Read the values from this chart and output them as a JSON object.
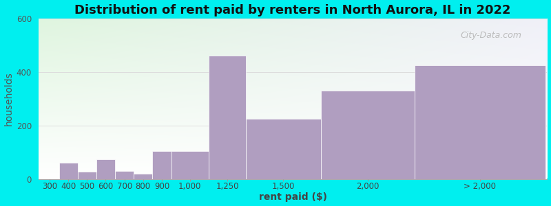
{
  "title": "Distribution of rent paid by renters in North Aurora, IL in 2022",
  "xlabel": "rent paid ($)",
  "ylabel": "households",
  "bar_labels": [
    "300",
    "400",
    "500",
    "600",
    "700",
    "800",
    "900",
    "1,000",
    "1,250",
    "1,500",
    "2,000",
    "> 2,000"
  ],
  "bar_values": [
    0,
    60,
    28,
    72,
    30,
    20,
    105,
    105,
    460,
    225,
    330,
    425
  ],
  "bar_color": "#b09ec0",
  "background_color": "#00efef",
  "plot_bg_top_left": "#dff5df",
  "plot_bg_top_right": "#f0f0f8",
  "plot_bg_bottom": "#ffffff",
  "ylim": [
    0,
    600
  ],
  "yticks": [
    0,
    200,
    400,
    600
  ],
  "title_fontsize": 13,
  "axis_label_fontsize": 10,
  "tick_fontsize": 8.5,
  "watermark_text": "City-Data.com"
}
